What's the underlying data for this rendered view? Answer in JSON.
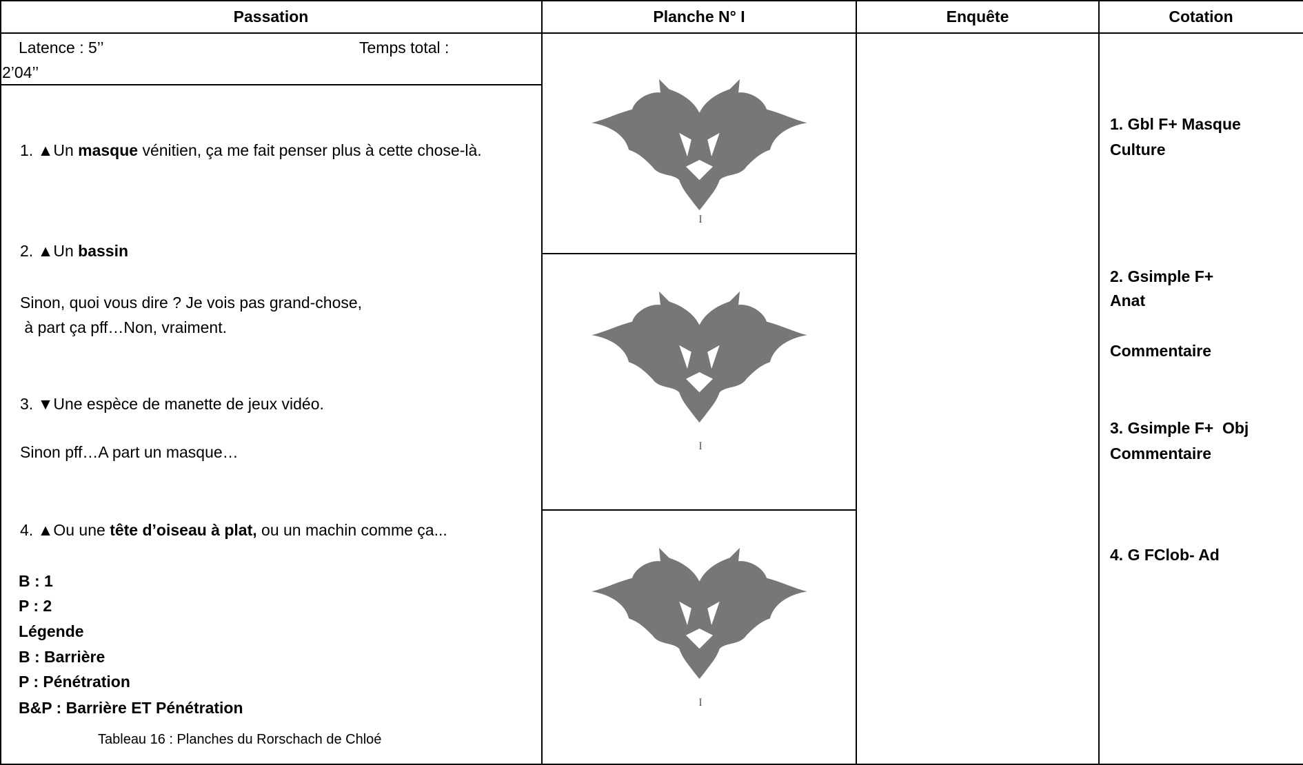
{
  "header": {
    "columns": [
      "Passation",
      "Planche N° I",
      "Enquête",
      "Cotation"
    ]
  },
  "passation": {
    "latence": "Latence : 5’’",
    "temps_total": "Temps total :",
    "temps_total_value": "2’04’’",
    "paragraphs": [
      [
        {
          "text": "1. ▲Un ",
          "bold": false
        },
        {
          "text": "masque",
          "bold": true
        },
        {
          "text": " vénitien, ça me fait penser plus à cette chose-là.",
          "bold": false
        }
      ],
      [
        {
          "text": "2. ▲Un ",
          "bold": false
        },
        {
          "text": "bassin",
          "bold": true
        }
      ],
      [
        {
          "text": "Sinon, quoi vous dire ? Je vois pas grand-chose,",
          "bold": false
        }
      ],
      [
        {
          "text": " à part ça pff…Non, vraiment.",
          "bold": false
        }
      ],
      [
        {
          "text": "3. ▼Une espèce de manette de jeux vidéo.",
          "bold": false
        }
      ],
      [
        {
          "text": "Sinon pff…A part un masque…",
          "bold": false
        }
      ],
      [
        {
          "text": "4. ▲Ou une ",
          "bold": false
        },
        {
          "text": "tête d’oiseau à plat,",
          "bold": true
        },
        {
          "text": " ou un machin comme ça...",
          "bold": false
        }
      ]
    ],
    "legend": [
      "B : 1",
      "P : 2",
      "Légende",
      "B : Barrière",
      "P : Pénétration",
      "B&P : Barrière ET Pénétration"
    ],
    "caption": "Tableau 16 : Planches du Rorschach de Chloé"
  },
  "planche": {
    "plate_labels": [
      "I",
      "I",
      "I"
    ]
  },
  "cotation": [
    [
      "1. Gbl F+ Masque",
      "Culture"
    ],
    [
      "2. Gsimple F+",
      "Anat"
    ],
    [
      "Commentaire"
    ],
    [
      "3. Gsimple F+  Obj",
      "Commentaire"
    ],
    [
      "4. G FClob- Ad"
    ]
  ]
}
